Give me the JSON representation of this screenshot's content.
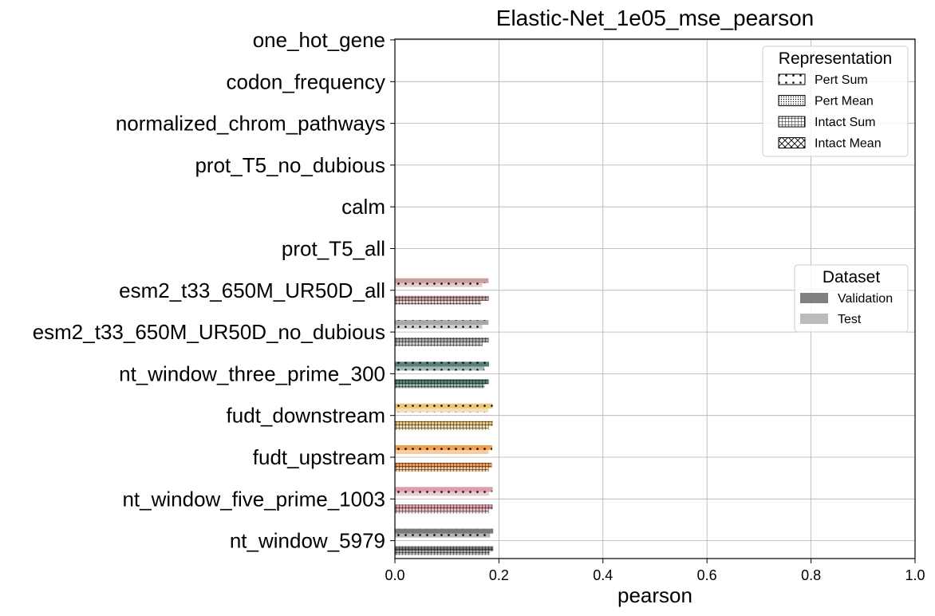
{
  "chart_data": {
    "type": "bar",
    "orientation": "horizontal",
    "title": "Elastic-Net_1e05_mse_pearson",
    "xlabel": "pearson",
    "ylabel": "",
    "xlim": [
      0,
      1
    ],
    "xticks": [
      "0.0",
      "0.2",
      "0.4",
      "0.6",
      "0.8",
      "1.0"
    ],
    "grid": true,
    "categories": [
      "one_hot_gene",
      "codon_frequency",
      "normalized_chrom_pathways",
      "prot_T5_no_dubious",
      "calm",
      "prot_T5_all",
      "esm2_t33_650M_UR50D_all",
      "esm2_t33_650M_UR50D_no_dubious",
      "nt_window_three_prime_300",
      "fudt_downstream",
      "fudt_upstream",
      "nt_window_five_prime_1003",
      "nt_window_5979"
    ],
    "colors": [
      "#cccccc",
      "#cccccc",
      "#cccccc",
      "#cccccc",
      "#cccccc",
      "#cccccc",
      "#c9a0a0",
      "#a8a8a8",
      "#5a7f7a",
      "#e8c77c",
      "#f0a055",
      "#dba0aa",
      "#7a7a7a"
    ],
    "series": [
      {
        "representation": "Pert Sum",
        "dataset": "Validation",
        "values": [
          null,
          null,
          null,
          null,
          null,
          null,
          0.18,
          0.18,
          0.181,
          0.188,
          0.187,
          0.188,
          0.189
        ]
      },
      {
        "representation": "Pert Sum",
        "dataset": "Test",
        "values": [
          null,
          null,
          null,
          null,
          null,
          null,
          0.168,
          0.168,
          0.172,
          0.18,
          0.18,
          0.181,
          0.183
        ]
      },
      {
        "representation": "Intact Sum",
        "dataset": "Validation",
        "values": [
          null,
          null,
          null,
          null,
          null,
          null,
          0.18,
          0.18,
          0.18,
          0.188,
          0.186,
          0.188,
          0.189
        ]
      },
      {
        "representation": "Intact Sum",
        "dataset": "Test",
        "values": [
          null,
          null,
          null,
          null,
          null,
          null,
          0.166,
          0.168,
          0.172,
          0.18,
          0.18,
          0.18,
          0.182
        ]
      }
    ],
    "legends": [
      {
        "title": "Representation",
        "placement": "upper-right",
        "entries": [
          {
            "label": "Pert Sum",
            "pattern": "dots"
          },
          {
            "label": "Pert Mean",
            "pattern": "dense-dots"
          },
          {
            "label": "Intact Sum",
            "pattern": "grid"
          },
          {
            "label": "Intact Mean",
            "pattern": "crosshatch"
          }
        ]
      },
      {
        "title": "Dataset",
        "placement": "center-right",
        "entries": [
          {
            "label": "Validation",
            "color": "#808080"
          },
          {
            "label": "Test",
            "color": "#bbbbbb"
          }
        ]
      }
    ]
  }
}
